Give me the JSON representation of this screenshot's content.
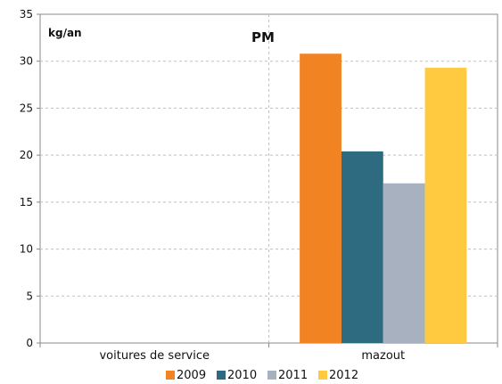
{
  "chart_data": {
    "type": "bar",
    "title": "PM",
    "ylabel": "kg/an",
    "xlabel": "",
    "categories": [
      "voitures de service",
      "mazout"
    ],
    "series": [
      {
        "name": "2009",
        "color": "#F28322",
        "values": [
          0,
          30.8
        ]
      },
      {
        "name": "2010",
        "color": "#2E6A80",
        "values": [
          0,
          20.4
        ]
      },
      {
        "name": "2011",
        "color": "#A7B1C0",
        "values": [
          0,
          17.0
        ]
      },
      {
        "name": "2012",
        "color": "#FFC940",
        "values": [
          0,
          29.3
        ]
      }
    ],
    "ylim": [
      0,
      35
    ],
    "yticks": [
      0,
      5,
      10,
      15,
      20,
      25,
      30,
      35
    ],
    "grid": true,
    "legend": "bottom"
  }
}
